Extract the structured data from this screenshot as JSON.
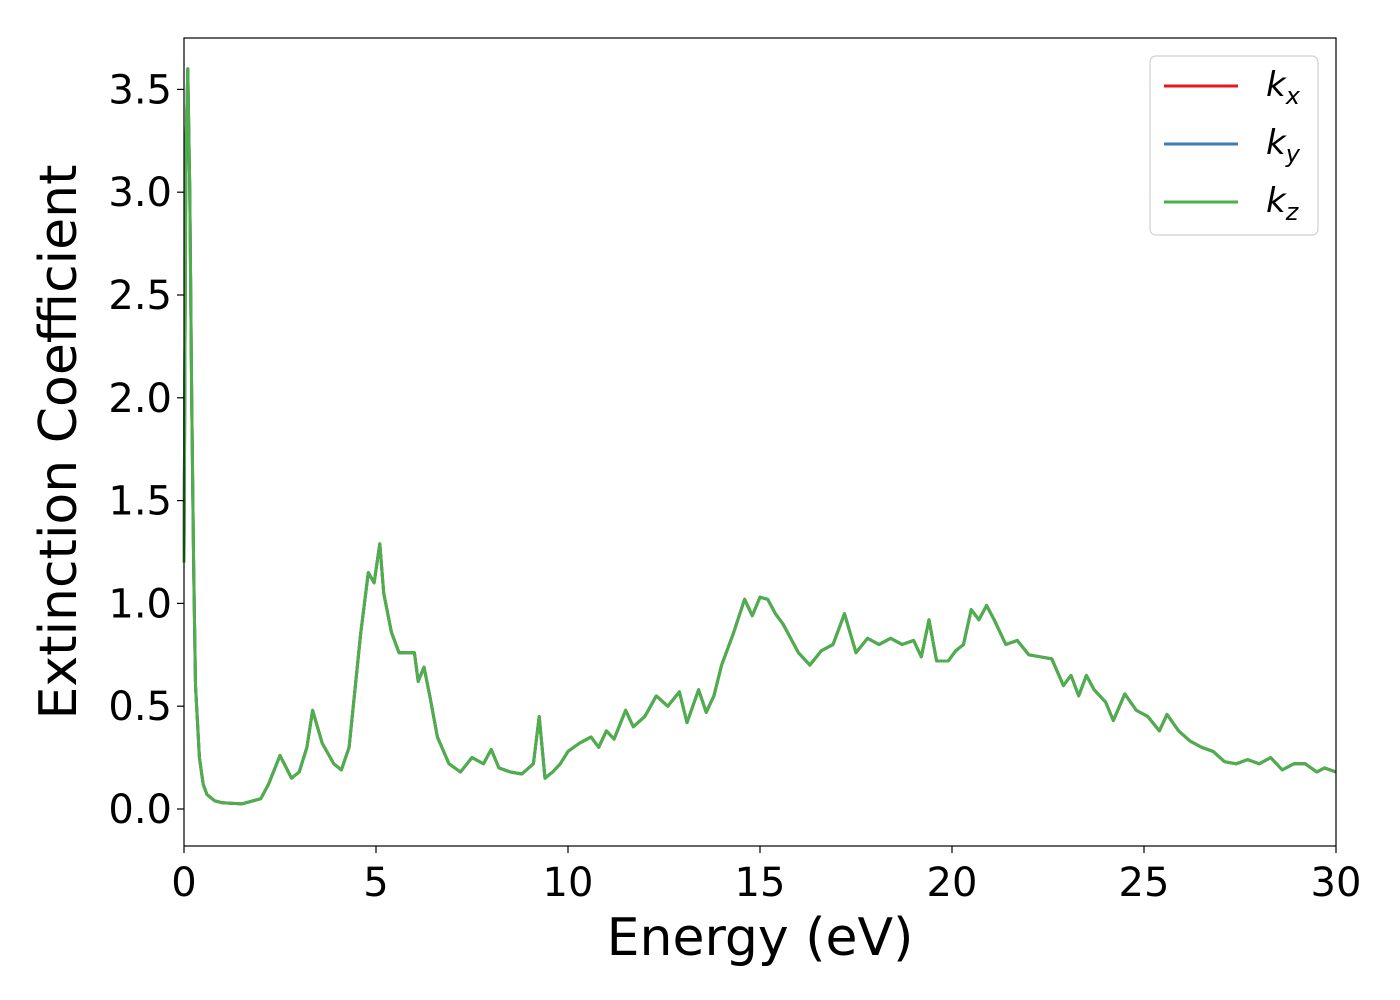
{
  "chart_data": {
    "type": "line",
    "xlabel": "Energy (eV)",
    "ylabel": "Extinction Coefficient",
    "xlim": [
      0,
      30
    ],
    "ylim": [
      -0.18,
      3.75
    ],
    "xticks": [
      "0",
      "5",
      "10",
      "15",
      "20",
      "25",
      "30"
    ],
    "xtick_values": [
      0,
      5,
      10,
      15,
      20,
      25,
      30
    ],
    "yticks": [
      "0.0",
      "0.5",
      "1.0",
      "1.5",
      "2.0",
      "2.5",
      "3.0",
      "3.5"
    ],
    "ytick_values": [
      0,
      0.5,
      1.0,
      1.5,
      2.0,
      2.5,
      3.0,
      3.5
    ],
    "grid": false,
    "legend_position": "top-right",
    "x": [
      0,
      0.05,
      0.1,
      0.15,
      0.2,
      0.25,
      0.3,
      0.4,
      0.5,
      0.6,
      0.8,
      1.0,
      1.5,
      2.0,
      2.2,
      2.5,
      2.8,
      3.0,
      3.2,
      3.35,
      3.6,
      3.9,
      4.1,
      4.3,
      4.6,
      4.8,
      4.95,
      5.1,
      5.2,
      5.4,
      5.6,
      6.0,
      6.1,
      6.25,
      6.4,
      6.6,
      6.9,
      7.2,
      7.5,
      7.8,
      8.0,
      8.2,
      8.5,
      8.8,
      9.1,
      9.25,
      9.4,
      9.6,
      9.8,
      10.0,
      10.3,
      10.6,
      10.8,
      11.0,
      11.2,
      11.5,
      11.7,
      12.0,
      12.3,
      12.6,
      12.9,
      13.1,
      13.4,
      13.6,
      13.8,
      14.0,
      14.3,
      14.6,
      14.8,
      15.0,
      15.2,
      15.4,
      15.6,
      15.8,
      16.0,
      16.3,
      16.6,
      16.9,
      17.2,
      17.5,
      17.8,
      18.1,
      18.4,
      18.7,
      19.0,
      19.2,
      19.4,
      19.6,
      19.9,
      20.1,
      20.3,
      20.5,
      20.7,
      20.9,
      21.1,
      21.4,
      21.7,
      22.0,
      22.3,
      22.6,
      22.9,
      23.1,
      23.3,
      23.5,
      23.7,
      24.0,
      24.2,
      24.5,
      24.8,
      25.1,
      25.4,
      25.6,
      25.9,
      26.2,
      26.5,
      26.8,
      27.1,
      27.4,
      27.7,
      28.0,
      28.3,
      28.6,
      28.9,
      29.2,
      29.5,
      29.7,
      30.0
    ],
    "series": [
      {
        "name": "k",
        "sub": "x",
        "color": "#e41a1c",
        "values": [
          1.2,
          3.2,
          3.6,
          3.0,
          2.0,
          1.2,
          0.6,
          0.25,
          0.12,
          0.07,
          0.04,
          0.03,
          0.025,
          0.05,
          0.12,
          0.26,
          0.15,
          0.18,
          0.3,
          0.48,
          0.32,
          0.22,
          0.19,
          0.3,
          0.85,
          1.15,
          1.1,
          1.29,
          1.05,
          0.86,
          0.76,
          0.76,
          0.62,
          0.69,
          0.55,
          0.35,
          0.22,
          0.18,
          0.25,
          0.22,
          0.29,
          0.2,
          0.18,
          0.17,
          0.22,
          0.45,
          0.15,
          0.18,
          0.22,
          0.28,
          0.32,
          0.35,
          0.3,
          0.38,
          0.34,
          0.48,
          0.4,
          0.45,
          0.55,
          0.5,
          0.57,
          0.42,
          0.58,
          0.47,
          0.55,
          0.7,
          0.85,
          1.02,
          0.94,
          1.03,
          1.02,
          0.95,
          0.9,
          0.83,
          0.76,
          0.7,
          0.77,
          0.8,
          0.95,
          0.76,
          0.83,
          0.8,
          0.83,
          0.8,
          0.82,
          0.74,
          0.92,
          0.72,
          0.72,
          0.77,
          0.8,
          0.97,
          0.92,
          0.99,
          0.92,
          0.8,
          0.82,
          0.75,
          0.74,
          0.73,
          0.6,
          0.65,
          0.55,
          0.65,
          0.58,
          0.52,
          0.43,
          0.56,
          0.48,
          0.45,
          0.38,
          0.46,
          0.38,
          0.33,
          0.3,
          0.28,
          0.23,
          0.22,
          0.24,
          0.22,
          0.25,
          0.19,
          0.22,
          0.22,
          0.18,
          0.2,
          0.18
        ]
      },
      {
        "name": "k",
        "sub": "y",
        "color": "#377eb8",
        "values": [
          1.2,
          3.2,
          3.6,
          3.0,
          2.0,
          1.2,
          0.6,
          0.25,
          0.12,
          0.07,
          0.04,
          0.03,
          0.025,
          0.05,
          0.12,
          0.26,
          0.15,
          0.18,
          0.3,
          0.48,
          0.32,
          0.22,
          0.19,
          0.3,
          0.85,
          1.15,
          1.1,
          1.29,
          1.05,
          0.86,
          0.76,
          0.76,
          0.62,
          0.69,
          0.55,
          0.35,
          0.22,
          0.18,
          0.25,
          0.22,
          0.29,
          0.2,
          0.18,
          0.17,
          0.22,
          0.45,
          0.15,
          0.18,
          0.22,
          0.28,
          0.32,
          0.35,
          0.3,
          0.38,
          0.34,
          0.48,
          0.4,
          0.45,
          0.55,
          0.5,
          0.57,
          0.42,
          0.58,
          0.47,
          0.55,
          0.7,
          0.85,
          1.02,
          0.94,
          1.03,
          1.02,
          0.95,
          0.9,
          0.83,
          0.76,
          0.7,
          0.77,
          0.8,
          0.95,
          0.76,
          0.83,
          0.8,
          0.83,
          0.8,
          0.82,
          0.74,
          0.92,
          0.72,
          0.72,
          0.77,
          0.8,
          0.97,
          0.92,
          0.99,
          0.92,
          0.8,
          0.82,
          0.75,
          0.74,
          0.73,
          0.6,
          0.65,
          0.55,
          0.65,
          0.58,
          0.52,
          0.43,
          0.56,
          0.48,
          0.45,
          0.38,
          0.46,
          0.38,
          0.33,
          0.3,
          0.28,
          0.23,
          0.22,
          0.24,
          0.22,
          0.25,
          0.19,
          0.22,
          0.22,
          0.18,
          0.2,
          0.18
        ]
      },
      {
        "name": "k",
        "sub": "z",
        "color": "#4daf4a",
        "values": [
          1.2,
          3.2,
          3.6,
          3.0,
          2.0,
          1.2,
          0.6,
          0.25,
          0.12,
          0.07,
          0.04,
          0.03,
          0.025,
          0.05,
          0.12,
          0.26,
          0.15,
          0.18,
          0.3,
          0.48,
          0.32,
          0.22,
          0.19,
          0.3,
          0.85,
          1.15,
          1.1,
          1.29,
          1.05,
          0.86,
          0.76,
          0.76,
          0.62,
          0.69,
          0.55,
          0.35,
          0.22,
          0.18,
          0.25,
          0.22,
          0.29,
          0.2,
          0.18,
          0.17,
          0.22,
          0.45,
          0.15,
          0.18,
          0.22,
          0.28,
          0.32,
          0.35,
          0.3,
          0.38,
          0.34,
          0.48,
          0.4,
          0.45,
          0.55,
          0.5,
          0.57,
          0.42,
          0.58,
          0.47,
          0.55,
          0.7,
          0.85,
          1.02,
          0.94,
          1.03,
          1.02,
          0.95,
          0.9,
          0.83,
          0.76,
          0.7,
          0.77,
          0.8,
          0.95,
          0.76,
          0.83,
          0.8,
          0.83,
          0.8,
          0.82,
          0.74,
          0.92,
          0.72,
          0.72,
          0.77,
          0.8,
          0.97,
          0.92,
          0.99,
          0.92,
          0.8,
          0.82,
          0.75,
          0.74,
          0.73,
          0.6,
          0.65,
          0.55,
          0.65,
          0.58,
          0.52,
          0.43,
          0.56,
          0.48,
          0.45,
          0.38,
          0.46,
          0.38,
          0.33,
          0.3,
          0.28,
          0.23,
          0.22,
          0.24,
          0.22,
          0.25,
          0.19,
          0.22,
          0.22,
          0.18,
          0.2,
          0.18
        ]
      }
    ]
  }
}
